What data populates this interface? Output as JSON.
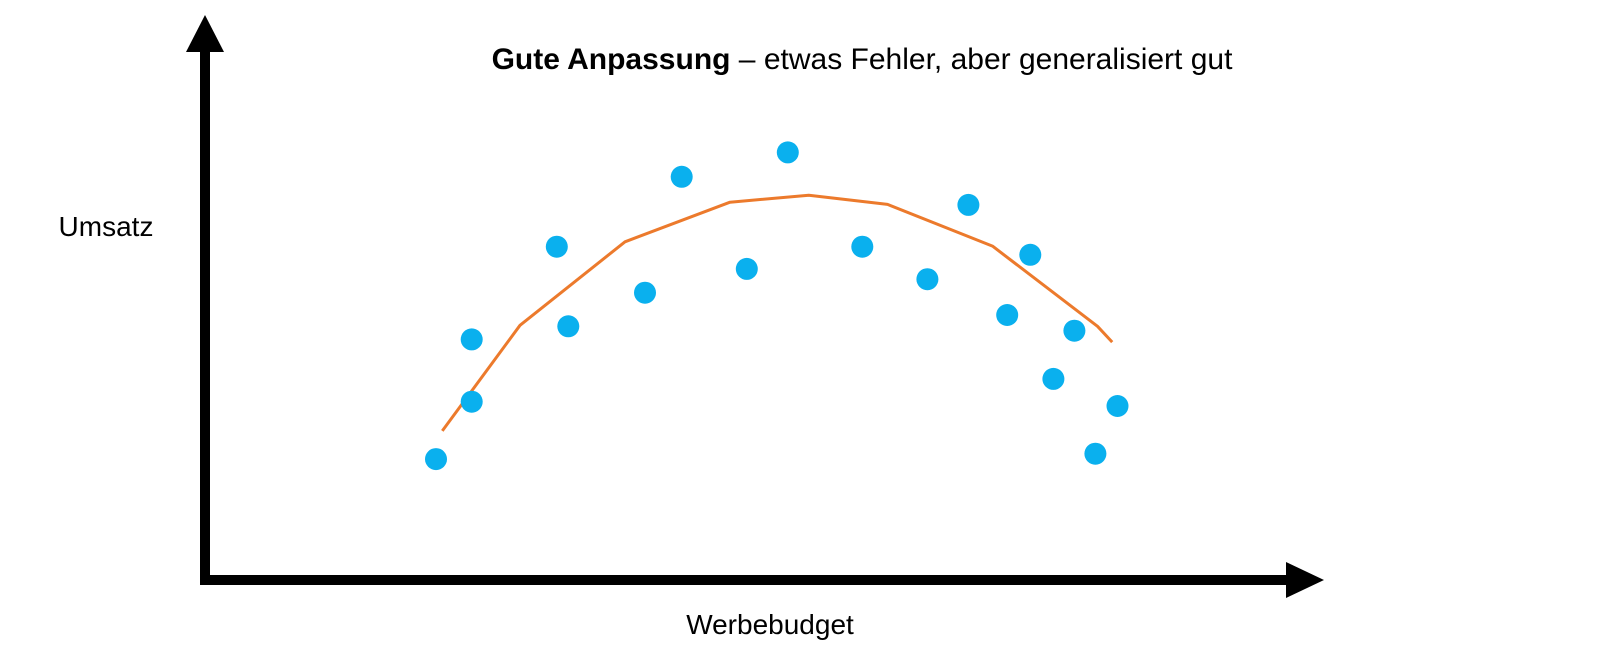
{
  "title": {
    "bold": "Gute Anpassung",
    "rest": " – etwas Fehler, aber generalisiert gut"
  },
  "chart_data": {
    "type": "scatter",
    "xlabel": "Werbebudget",
    "ylabel": "Umsatz",
    "xlim": [
      0,
      100
    ],
    "ylim": [
      0,
      100
    ],
    "grid": false,
    "ticks_shown": false,
    "colors": {
      "points": "#0ab0ee",
      "fit": "#ec7a2c",
      "axes": "#000000"
    },
    "points": [
      {
        "x": 22.0,
        "y": 22.3
      },
      {
        "x": 25.4,
        "y": 32.9
      },
      {
        "x": 25.4,
        "y": 44.4
      },
      {
        "x": 33.5,
        "y": 61.5
      },
      {
        "x": 34.6,
        "y": 46.8
      },
      {
        "x": 41.9,
        "y": 53.0
      },
      {
        "x": 45.4,
        "y": 74.4
      },
      {
        "x": 51.6,
        "y": 57.4
      },
      {
        "x": 55.5,
        "y": 78.9
      },
      {
        "x": 62.6,
        "y": 61.5
      },
      {
        "x": 68.8,
        "y": 55.5
      },
      {
        "x": 72.7,
        "y": 69.2
      },
      {
        "x": 76.4,
        "y": 48.9
      },
      {
        "x": 78.6,
        "y": 60.0
      },
      {
        "x": 80.8,
        "y": 37.1
      },
      {
        "x": 82.8,
        "y": 46.0
      },
      {
        "x": 84.8,
        "y": 23.3
      },
      {
        "x": 86.9,
        "y": 32.1
      }
    ],
    "fit_curve": {
      "type": "quadratic",
      "x": [
        22.6,
        30.0,
        40.0,
        50.0,
        57.5,
        65.0,
        75.0,
        85.0,
        86.4
      ],
      "y": [
        27.5,
        47.0,
        62.4,
        69.7,
        71.0,
        69.3,
        61.6,
        46.8,
        43.9
      ]
    }
  }
}
